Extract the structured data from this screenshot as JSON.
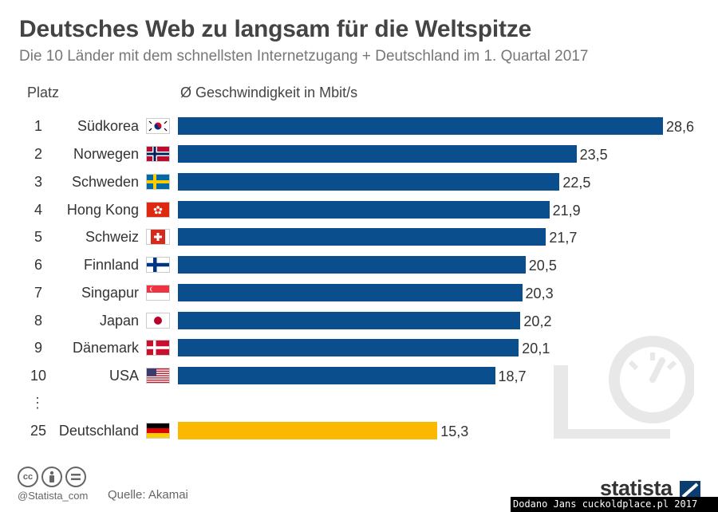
{
  "header": {
    "title": "Deutsches Web zu langsam für die Weltspitze",
    "subtitle": "Die 10 Länder mit dem schnellsten Internetzugang + Deutschland im 1. Quartal 2017",
    "col_rank": "Platz",
    "col_speed": "Ø Geschwindigkeit in Mbit/s"
  },
  "chart_data": {
    "type": "bar",
    "orientation": "horizontal",
    "categories": [
      "Südkorea",
      "Norwegen",
      "Schweden",
      "Hong Kong",
      "Schweiz",
      "Finnland",
      "Singapur",
      "Japan",
      "Dänemark",
      "USA",
      "Deutschland"
    ],
    "ranks": [
      "1",
      "2",
      "3",
      "4",
      "5",
      "6",
      "7",
      "8",
      "9",
      "10",
      "25"
    ],
    "values": [
      28.6,
      23.5,
      22.5,
      21.9,
      21.7,
      20.5,
      20.3,
      20.2,
      20.1,
      18.7,
      15.3
    ],
    "value_labels": [
      "28,6",
      "23,5",
      "22,5",
      "21,9",
      "21,7",
      "20,5",
      "20,3",
      "20,2",
      "20,1",
      "18,7",
      "15,3"
    ],
    "flags": [
      "south-korea-flag",
      "norway-flag",
      "sweden-flag",
      "hong-kong-flag",
      "switzerland-flag",
      "finland-flag",
      "singapore-flag",
      "japan-flag",
      "denmark-flag",
      "usa-flag",
      "germany-flag"
    ],
    "highlight_index": 10,
    "colors": {
      "bar": "#0b4e8d",
      "highlight": "#fbb800"
    },
    "xlim": [
      0,
      28.6
    ],
    "grid": false,
    "legend": "none",
    "ellipsis": "⋮"
  },
  "footer": {
    "handle": "@Statista_com",
    "source": "Quelle: Akamai",
    "brand": "statista",
    "license_icons": [
      "cc-icon",
      "attribution-icon",
      "no-derivatives-icon"
    ],
    "watermark": "Dodano Jans cuckoldplace.pl 2017"
  },
  "decoration": {
    "icon": "speedometer-icon",
    "color": "#e8e8e8"
  }
}
